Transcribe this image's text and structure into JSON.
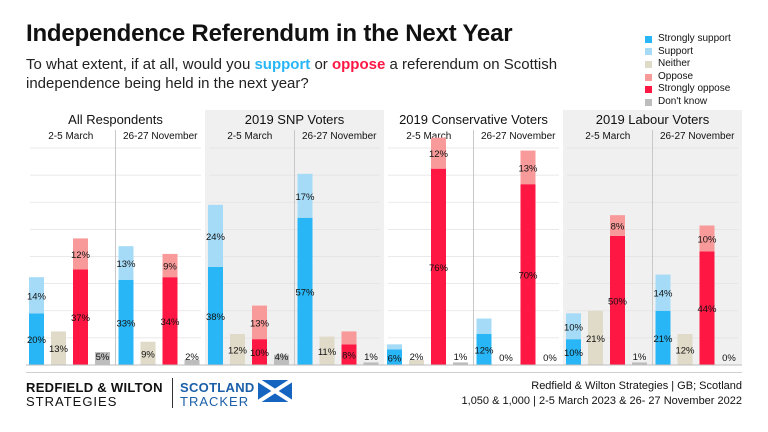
{
  "title": "Independence Referendum in the Next Year",
  "subtitle": {
    "part1": "To what extent, if at all, would you ",
    "support": "support",
    "or": " or ",
    "oppose": "oppose",
    "part2": " a referendum on Scottish independence being held in the next year?"
  },
  "legend": [
    {
      "label": "Strongly support",
      "color": "#29b6f6"
    },
    {
      "label": "Support",
      "color": "#a6dbf7"
    },
    {
      "label": "Neither",
      "color": "#e0dac8"
    },
    {
      "label": "Oppose",
      "color": "#f99a9a"
    },
    {
      "label": "Strongly oppose",
      "color": "#ff1744"
    },
    {
      "label": "Don't know",
      "color": "#bdbdbd"
    }
  ],
  "footer": {
    "brand_line1": "REDFIELD & WILTON",
    "brand_line2": "STRATEGIES",
    "tracker_line1": "SCOTLAND",
    "tracker_line2": "TRACKER",
    "source_line1": "Redfield & Wilton Strategies | GB; Scotland",
    "source_line2": "1,050 & 1,000 | 2-5 March 2023 & 26- 27 November 2022"
  },
  "chart_data": {
    "type": "bar",
    "stacked": true,
    "ylim": [
      0,
      60
    ],
    "panels": [
      {
        "title": "All Respondents",
        "shaded": false,
        "periods": [
          {
            "label": "2-5 March",
            "strongly_support": 20,
            "support": 14,
            "neither": 13,
            "oppose": 12,
            "strongly_oppose": 37,
            "dont_know": 5
          },
          {
            "label": "26-27 November",
            "strongly_support": 33,
            "support": 13,
            "neither": 9,
            "oppose": 9,
            "strongly_oppose": 34,
            "dont_know": 2
          }
        ]
      },
      {
        "title": "2019 SNP Voters",
        "shaded": true,
        "periods": [
          {
            "label": "2-5 March",
            "strongly_support": 38,
            "support": 24,
            "neither": 12,
            "oppose": 13,
            "strongly_oppose": 10,
            "dont_know": 4
          },
          {
            "label": "26-27 November",
            "strongly_support": 57,
            "support": 17,
            "neither": 11,
            "oppose": 5,
            "strongly_oppose": 8,
            "dont_know": 1
          }
        ]
      },
      {
        "title": "2019 Conservative Voters",
        "shaded": false,
        "periods": [
          {
            "label": "2-5 March",
            "strongly_support": 6,
            "support": 2,
            "neither": 2,
            "oppose": 12,
            "strongly_oppose": 76,
            "dont_know": 1
          },
          {
            "label": "26-27 November",
            "strongly_support": 12,
            "support": 6,
            "neither": 0,
            "oppose": 13,
            "strongly_oppose": 70,
            "dont_know": 0
          }
        ]
      },
      {
        "title": "2019 Labour Voters",
        "shaded": true,
        "periods": [
          {
            "label": "2-5 March",
            "strongly_support": 10,
            "support": 10,
            "neither": 21,
            "oppose": 8,
            "strongly_oppose": 50,
            "dont_know": 1
          },
          {
            "label": "26-27 November",
            "strongly_support": 21,
            "support": 14,
            "neither": 12,
            "oppose": 10,
            "strongly_oppose": 44,
            "dont_know": 0
          }
        ]
      }
    ],
    "labels_hidden": [
      {
        "panel": 1,
        "period": 1,
        "series": "oppose"
      },
      {
        "panel": 2,
        "period": 0,
        "series": "support"
      },
      {
        "panel": 2,
        "period": 1,
        "series": "support"
      }
    ]
  }
}
